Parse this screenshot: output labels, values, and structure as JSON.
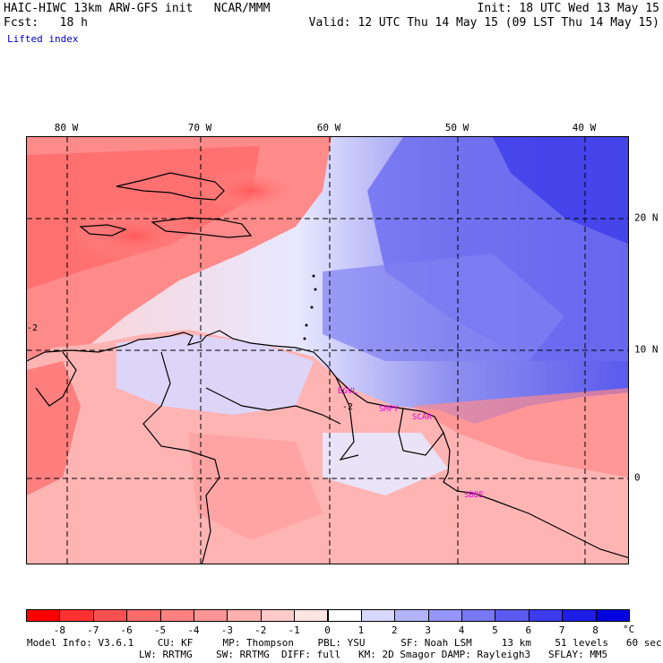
{
  "header": {
    "model_title": "HAIC-HIWC 13km ARW-GFS init   NCAR/MMM",
    "fcst": "Fcst:   18 h",
    "field": "Lifted index",
    "init": "Init: 18 UTC Wed 13 May 15",
    "valid": "Valid: 12 UTC Thu 14 May 15 (09 LST Thu 14 May 15)"
  },
  "map": {
    "lon_labels": [
      "80 W",
      "70 W",
      "60 W",
      "50 W",
      "40 W"
    ],
    "lat_labels": [
      "20 N",
      "10 N",
      "0"
    ],
    "stations": [
      "BGVL",
      "SMPY",
      "SCAR",
      "SBBE"
    ],
    "contour_labels": [
      "-2",
      "-2"
    ],
    "colors": {
      "unstable": "#ff0000",
      "stable": "#0000e0",
      "neutral": "#ffffff"
    }
  },
  "colorbar": {
    "labels": [
      "-8",
      "-7",
      "-6",
      "-5",
      "-4",
      "-3",
      "-2",
      "-1",
      "0",
      "1",
      "2",
      "3",
      "4",
      "5",
      "6",
      "7",
      "8"
    ],
    "unit": "°C",
    "colors": [
      "#ff0000",
      "#ff3030",
      "#ff5050",
      "#ff6a6a",
      "#ff8080",
      "#ff9696",
      "#ffb0b0",
      "#ffcaca",
      "#ffe4e4",
      "#ffffff",
      "#d8d8ff",
      "#b4b4fc",
      "#9696f8",
      "#7878f4",
      "#5a5af0",
      "#3c3cec",
      "#1e1ee8",
      "#0000e0"
    ]
  },
  "footer": {
    "line1": "Model Info: V3.6.1    CU: KF     MP: Thompson    PBL: YSU      SF: Noah LSM     13 km    51 levels   60 sec",
    "line2": "LW: RRTMG    SW: RRTMG  DIFF: full   KM: 2D Smagor DAMP: Rayleigh3   SFLAY: MM5"
  }
}
